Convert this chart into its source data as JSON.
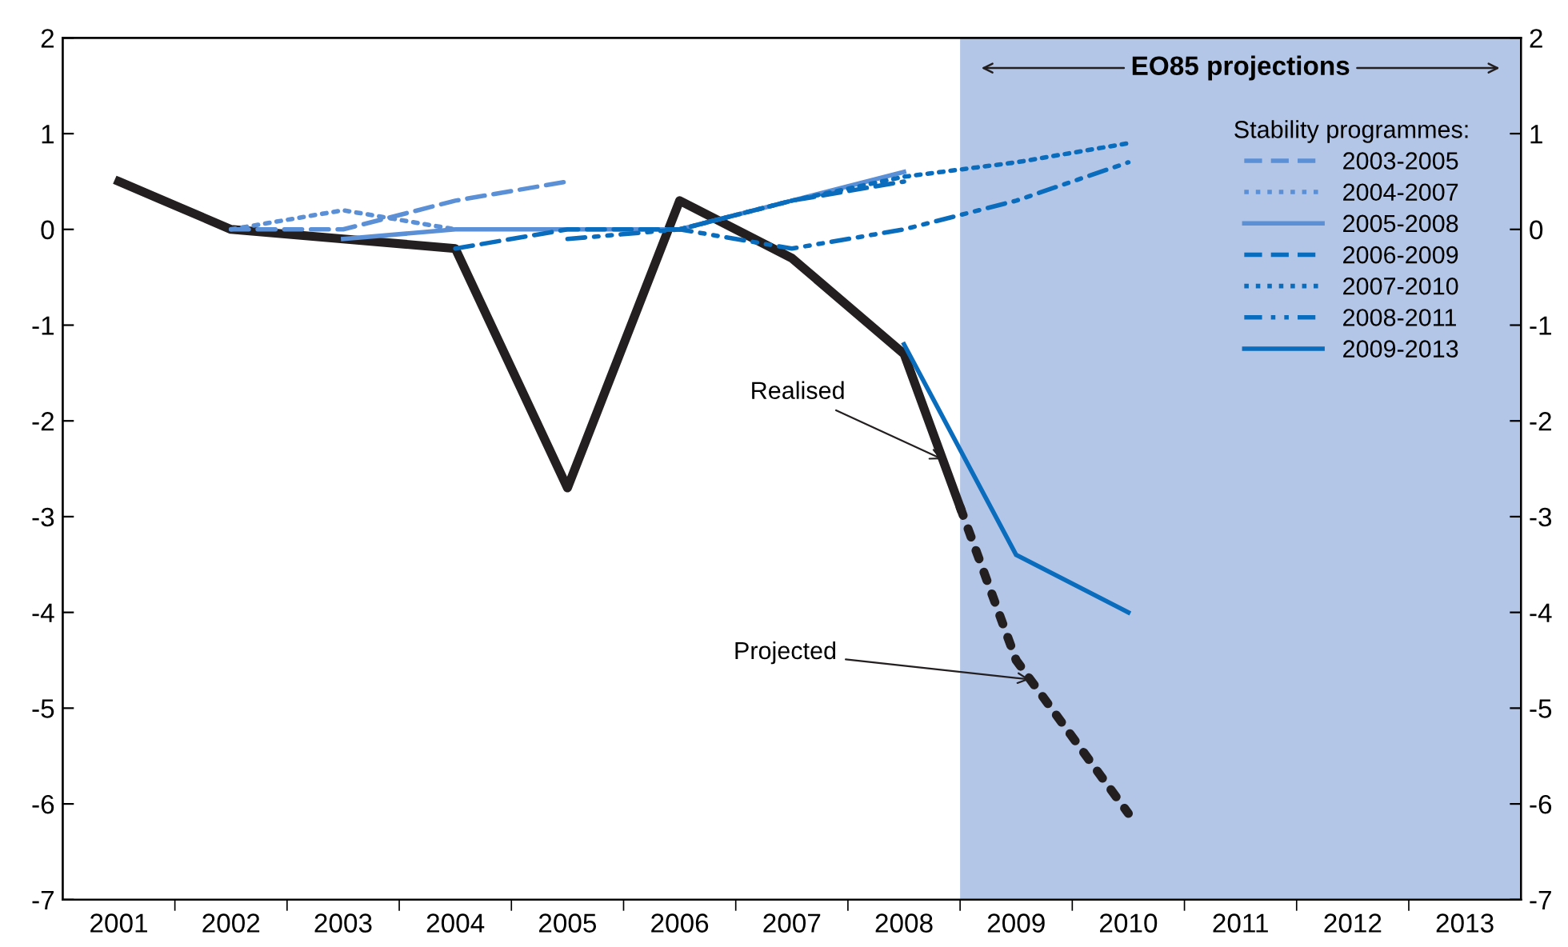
{
  "chart_data": {
    "type": "line",
    "xlim": [
      2000.5,
      2013.5
    ],
    "xticks": [
      {
        "value": 2001,
        "label": "2001"
      },
      {
        "value": 2002,
        "label": "2002"
      },
      {
        "value": 2003,
        "label": "2003"
      },
      {
        "value": 2004,
        "label": "2004"
      },
      {
        "value": 2005,
        "label": "2005"
      },
      {
        "value": 2006,
        "label": "2006"
      },
      {
        "value": 2007,
        "label": "2007"
      },
      {
        "value": 2008,
        "label": "2008"
      },
      {
        "value": 2009,
        "label": "2009"
      },
      {
        "value": 2010,
        "label": "2010"
      },
      {
        "value": 2011,
        "label": "2011"
      },
      {
        "value": 2012,
        "label": "2012"
      },
      {
        "value": 2013,
        "label": "2013"
      },
      {
        "value": 2001.5,
        "label": null
      },
      {
        "value": 2002.5,
        "label": null
      },
      {
        "value": 2003.5,
        "label": null
      },
      {
        "value": 2004.5,
        "label": null
      },
      {
        "value": 2005.5,
        "label": null
      },
      {
        "value": 2006.5,
        "label": null
      },
      {
        "value": 2007.5,
        "label": null
      },
      {
        "value": 2008.5,
        "label": null
      },
      {
        "value": 2009.5,
        "label": null
      },
      {
        "value": 2010.5,
        "label": null
      },
      {
        "value": 2011.5,
        "label": null
      },
      {
        "value": 2012.5,
        "label": null
      }
    ],
    "ylim": [
      -7,
      2
    ],
    "yticks": [
      -7,
      -6,
      -5,
      -4,
      -3,
      -2,
      -1,
      0,
      1,
      2
    ],
    "y2lim": [
      -7,
      2
    ],
    "y2ticks": [
      -7,
      -6,
      -5,
      -4,
      -3,
      -2,
      -1,
      0,
      1,
      2
    ],
    "legend": "top right",
    "legend_title": "Stability programmes:",
    "grid": false,
    "bands": [
      {
        "axis": "x",
        "from": 2008.5,
        "to": 2013.5,
        "label": "EO85 projections",
        "color": "#b3c6e7"
      }
    ],
    "series": [
      {
        "color": "#231f20",
        "line_style": "solid",
        "x": [
          2001,
          2002,
          2003,
          2004,
          2005,
          2006,
          2007,
          2008,
          2008.5
        ],
        "values": [
          0.5,
          0,
          -0.1,
          -0.2,
          -2.7,
          0.3,
          -0.3,
          -1.3,
          -2.9
        ]
      },
      {
        "color": "#231f20",
        "line_style": "dotted",
        "x": [
          2008.5,
          2009,
          2010
        ],
        "values": [
          -2.9,
          -4.5,
          -6.1
        ]
      },
      {
        "name": "2003-2005",
        "color": "#5b8fd6",
        "line_style": "dashed",
        "x": [
          2002,
          2003,
          2004,
          2005
        ],
        "values": [
          0,
          0,
          0.3,
          0.5
        ]
      },
      {
        "name": "2004-2007",
        "color": "#5b8fd6",
        "line_style": "dotted",
        "x": [
          2002,
          2003,
          2004
        ],
        "values": [
          0,
          0.2,
          0
        ]
      },
      {
        "name": "2005-2008",
        "color": "#5b8fd6",
        "line_style": "solid",
        "x": [
          2003,
          2004,
          2005,
          2006,
          2007,
          2008
        ],
        "values": [
          -0.1,
          0,
          0,
          0,
          0.3,
          0.6
        ]
      },
      {
        "name": "2006-2009",
        "color": "#0a6cbc",
        "line_style": "dashed",
        "x": [
          2004,
          2005,
          2006,
          2007,
          2008
        ],
        "values": [
          -0.2,
          0,
          0,
          0.3,
          0.5
        ]
      },
      {
        "name": "2007-2010",
        "color": "#0a6cbc",
        "line_style": "dotted",
        "x": [
          2006,
          2007,
          2008,
          2009,
          2010
        ],
        "values": [
          0,
          0.3,
          0.55,
          0.7,
          0.9
        ]
      },
      {
        "name": "2008-2011",
        "color": "#0a6cbc",
        "line_style": "dashdot",
        "x": [
          2005,
          2006,
          2007,
          2008,
          2009,
          2010
        ],
        "values": [
          -0.1,
          0,
          -0.2,
          0,
          0.3,
          0.7
        ]
      },
      {
        "name": "2009-2013",
        "color": "#0a6cbc",
        "line_style": "solid",
        "x": [
          2008,
          2009,
          2010
        ],
        "values": [
          -1.2,
          -3.4,
          -4.0
        ]
      }
    ],
    "annotations": [
      {
        "text": "Realised",
        "x": 2008.34,
        "y": -2.4
      },
      {
        "text": "Projected",
        "x": 2009.12,
        "y": -4.7
      }
    ]
  }
}
